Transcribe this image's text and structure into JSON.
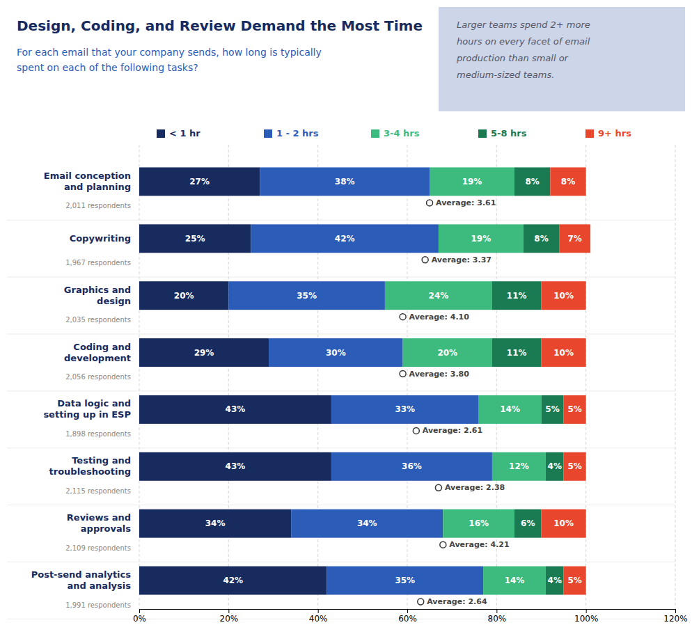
{
  "chart_data": {
    "type": "bar",
    "orientation": "horizontal",
    "stacked": true,
    "title": "Design, Coding, and Review Demand the Most Time",
    "subtitle": "For each email that your company sends, how long is typically\nspent on each of the following tasks?",
    "annotations": [
      "Larger teams spend 2+ more\nhours on every facet of email\nproduction than small or\nmedium-sized teams."
    ],
    "categories": [
      "Email conception\nand planning",
      "Copywriting",
      "Graphics and\ndesign",
      "Coding and\ndevelopment",
      "Data logic and\nsetting up in ESP",
      "Testing and\ntroubleshooting",
      "Reviews and\napprovals",
      "Post-send analytics\nand analysis"
    ],
    "respondents": [
      "2,011 respondents",
      "1,967 respondents",
      "2,035 respondents",
      "2,056 respondents",
      "1,898 respondents",
      "2,115 respondents",
      "2,109 respondents",
      "1,991 respondents"
    ],
    "series": [
      {
        "name": "< 1 hr",
        "color": "#172b5e",
        "values": [
          27,
          25,
          20,
          29,
          43,
          43,
          34,
          42
        ],
        "value_labels": [
          "27%",
          "25%",
          "20%",
          "29%",
          "43%",
          "43%",
          "34%",
          "42%"
        ]
      },
      {
        "name": "1 - 2 hrs",
        "color": "#2b5cb8",
        "values": [
          38,
          42,
          35,
          30,
          33,
          36,
          34,
          35
        ],
        "value_labels": [
          "38%",
          "42%",
          "35%",
          "30%",
          "33%",
          "36%",
          "34%",
          "35%"
        ]
      },
      {
        "name": "3-4 hrs",
        "color": "#3dba7e",
        "values": [
          19,
          19,
          24,
          20,
          14,
          12,
          16,
          14
        ],
        "value_labels": [
          "19%",
          "19%",
          "24%",
          "20%",
          "14%",
          "12%",
          "16%",
          "14%"
        ]
      },
      {
        "name": "5-8 hrs",
        "color": "#1a7a52",
        "values": [
          8,
          8,
          11,
          11,
          5,
          4,
          6,
          4
        ],
        "value_labels": [
          "8%",
          "8%",
          "11%",
          "11%",
          "5%",
          "4%",
          "6%",
          "4%"
        ]
      },
      {
        "name": "9+ hrs",
        "color": "#e8472e",
        "values": [
          8,
          7,
          10,
          10,
          5,
          5,
          10,
          5
        ],
        "value_labels": [
          "8%",
          "7%",
          "10%",
          "10%",
          "5%",
          "5%",
          "10%",
          "5%"
        ]
      }
    ],
    "averages": [
      3.61,
      3.37,
      4.1,
      3.8,
      2.61,
      2.38,
      4.21,
      2.64
    ],
    "average_labels": [
      "Average: 3.61",
      "Average: 3.37",
      "Average: 4.10",
      "Average: 3.80",
      "Average: 2.61",
      "Average: 2.38",
      "Average: 4.21",
      "Average: 2.64"
    ],
    "average_x": [
      65,
      64,
      59,
      59,
      62,
      67,
      68,
      63
    ],
    "xlim": [
      0,
      120
    ],
    "xticks": [
      {
        "value": 0,
        "label": "0%"
      },
      {
        "value": 20,
        "label": "20%"
      },
      {
        "value": 40,
        "label": "40%"
      },
      {
        "value": 60,
        "label": "60%"
      },
      {
        "value": 80,
        "label": "80%"
      },
      {
        "value": 100,
        "label": "100%"
      },
      {
        "value": 120,
        "label": "120%"
      }
    ],
    "grid": true,
    "legend": "top",
    "data_labels": true
  }
}
